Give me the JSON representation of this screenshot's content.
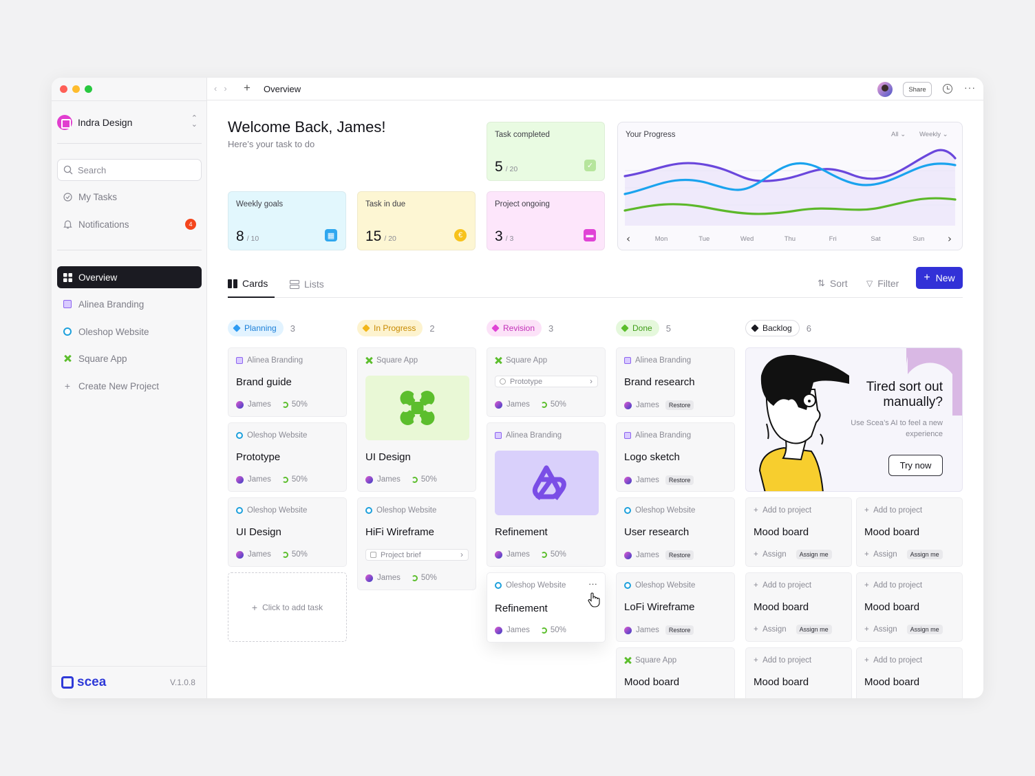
{
  "sidebar": {
    "workspace": "Indra Design",
    "search_placeholder": "Search",
    "my_tasks": "My Tasks",
    "notifications": "Notifications",
    "notifications_count": "4",
    "items": [
      {
        "label": "Overview",
        "active": true
      },
      {
        "label": "Alinea Branding"
      },
      {
        "label": "Oleshop Website"
      },
      {
        "label": "Square App"
      },
      {
        "label": "Create New Project"
      }
    ],
    "brand": "scea",
    "version": "V.1.0.8"
  },
  "topbar": {
    "title": "Overview",
    "share": "Share"
  },
  "header": {
    "title": "Welcome Back, James!",
    "subtitle": "Here’s your task to do"
  },
  "stats": [
    {
      "label": "Task completed",
      "value": "5",
      "total": "/ 20",
      "color": "#e9fbe2"
    },
    {
      "label": "Weekly goals",
      "value": "8",
      "total": "/ 10",
      "color": "#e2f7fd"
    },
    {
      "label": "Task in due",
      "value": "15",
      "total": "/ 20",
      "color": "#fdf6d3"
    },
    {
      "label": "Project ongoing",
      "value": "3",
      "total": "/ 3",
      "color": "#fde6fb"
    }
  ],
  "progress": {
    "title": "Your Progress",
    "filter": "All",
    "period": "Weekly",
    "days": [
      "Mon",
      "Tue",
      "Wed",
      "Thu",
      "Fri",
      "Sat",
      "Sun"
    ]
  },
  "chart_data": {
    "type": "line",
    "x": [
      "Mon",
      "Tue",
      "Wed",
      "Thu",
      "Fri",
      "Sat",
      "Sun"
    ],
    "series": [
      {
        "color": "#6a47dc"
      },
      {
        "color": "#1aa3ee"
      },
      {
        "color": "#5cb82a"
      }
    ]
  },
  "toolbar": {
    "cards": "Cards",
    "lists": "Lists",
    "sort": "Sort",
    "filter": "Filter",
    "new": "New"
  },
  "columns": [
    {
      "name": "Planning",
      "count": "3"
    },
    {
      "name": "In Progress",
      "count": "2"
    },
    {
      "name": "Revision",
      "count": "3"
    },
    {
      "name": "Done",
      "count": "5"
    },
    {
      "name": "Backlog",
      "count": "6"
    }
  ],
  "cards": {
    "planning": [
      {
        "project": "Alinea Branding",
        "title": "Brand guide",
        "user": "James",
        "progress": "50%"
      },
      {
        "project": "Oleshop Website",
        "title": "Prototype",
        "user": "James",
        "progress": "50%"
      },
      {
        "project": "Oleshop Website",
        "title": "UI Design",
        "user": "James",
        "progress": "50%"
      }
    ],
    "add_task": "Click to add task",
    "in_progress": [
      {
        "project": "Square App",
        "title": "UI Design",
        "user": "James",
        "progress": "50%"
      },
      {
        "project": "Oleshop Website",
        "title": "HiFi Wireframe",
        "field": "Project brief",
        "user": "James",
        "progress": "50%"
      }
    ],
    "revision": [
      {
        "project": "Square App",
        "field": "Prototype",
        "user": "James",
        "progress": "50%"
      },
      {
        "project": "Alinea Branding",
        "title": "Refinement",
        "user": "James",
        "progress": "50%"
      },
      {
        "project": "Oleshop Website",
        "title": "Refinement",
        "user": "James",
        "progress": "50%"
      }
    ],
    "done": [
      {
        "project": "Alinea Branding",
        "title": "Brand research",
        "user": "James",
        "tag": "Restore"
      },
      {
        "project": "Alinea Branding",
        "title": "Logo sketch",
        "user": "James",
        "tag": "Restore"
      },
      {
        "project": "Oleshop Website",
        "title": "User research",
        "user": "James",
        "tag": "Restore"
      },
      {
        "project": "Oleshop Website",
        "title": "LoFi Wireframe",
        "user": "James",
        "tag": "Restore"
      },
      {
        "project": "Square App",
        "title": "Mood board"
      }
    ],
    "backlog": {
      "add": "Add to project",
      "title": "Mood board",
      "assign": "Assign",
      "assign_me": "Assign me"
    }
  },
  "promo": {
    "headline": "Tired sort out manually?",
    "text": "Use Scea’s AI to feel a new experience",
    "button": "Try now"
  }
}
